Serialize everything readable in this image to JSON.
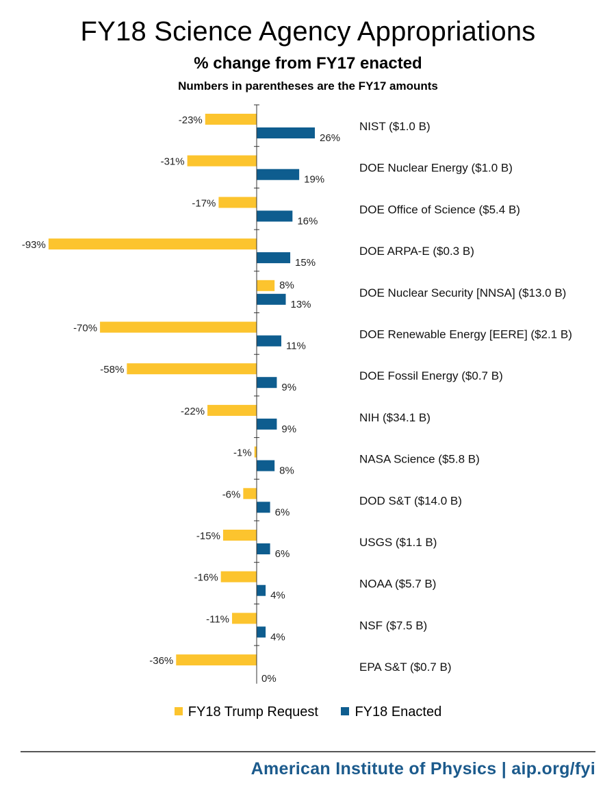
{
  "chart_data": {
    "type": "bar",
    "orientation": "horizontal",
    "title": "FY18 Science Agency Appropriations",
    "subtitle": "% change from FY17 enacted",
    "note": "Numbers in parentheses are the FY17 amounts",
    "categories": [
      "NIST ($1.0 B)",
      "DOE Nuclear Energy ($1.0 B)",
      "DOE Office of Science ($5.4 B)",
      "DOE ARPA-E ($0.3 B)",
      "DOE Nuclear Security [NNSA] ($13.0 B)",
      "DOE Renewable Energy [EERE] ($2.1 B)",
      "DOE Fossil Energy ($0.7 B)",
      "NIH ($34.1 B)",
      "NASA Science ($5.8 B)",
      "DOD S&T ($14.0 B)",
      "USGS ($1.1 B)",
      "NOAA ($5.7 B)",
      "NSF ($7.5 B)",
      "EPA S&T ($0.7 B)"
    ],
    "series": [
      {
        "name": "FY18 Trump Request",
        "color": "#fcc42e",
        "values": [
          -23,
          -31,
          -17,
          -93,
          8,
          -70,
          -58,
          -22,
          -1,
          -6,
          -15,
          -16,
          -11,
          -36
        ]
      },
      {
        "name": "FY18 Enacted",
        "color": "#0e5d8f",
        "values": [
          26,
          19,
          16,
          15,
          13,
          11,
          9,
          9,
          8,
          6,
          6,
          4,
          4,
          0
        ]
      }
    ],
    "value_suffix": "%",
    "xlim": [
      -93,
      27
    ],
    "grid": false,
    "legend": "bottom"
  },
  "footer": "American Institute of Physics | aip.org/fyi"
}
